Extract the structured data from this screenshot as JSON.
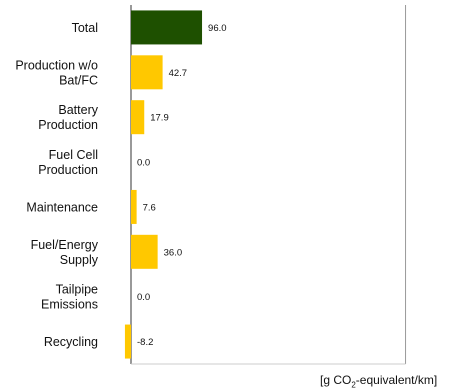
{
  "chart_data": {
    "type": "bar",
    "orientation": "horizontal",
    "categories": [
      "Total",
      "Production w/o Bat/FC",
      "Battery Production",
      "Fuel Cell Production",
      "Maintenance",
      "Fuel/Energy Supply",
      "Tailpipe Emissions",
      "Recycling"
    ],
    "category_lines": [
      [
        "Total"
      ],
      [
        "Production  w/o",
        "Bat/FC"
      ],
      [
        "Battery",
        "Production"
      ],
      [
        "Fuel Cell",
        "Production"
      ],
      [
        "Maintenance"
      ],
      [
        "Fuel/Energy",
        "Supply"
      ],
      [
        "Tailpipe",
        "Emissions"
      ],
      [
        "Recycling"
      ]
    ],
    "values": [
      96.0,
      42.7,
      17.9,
      0.0,
      7.6,
      36.0,
      0.0,
      -8.2
    ],
    "value_labels": [
      "96.0",
      "42.7",
      "17.9",
      "0.0",
      "7.6",
      "36.0",
      "0.0",
      "-8.2"
    ],
    "bar_colors": [
      "#1e5000",
      "#ffc800",
      "#ffc800",
      "#ffc800",
      "#ffc800",
      "#ffc800",
      "#ffc800",
      "#ffc800"
    ],
    "xlabel": {
      "prefix": "[g CO",
      "subscript": "2",
      "suffix": "-equivalent/km]"
    },
    "xlim": [
      -8.2,
      371
    ],
    "gridlines_x": [
      0,
      371
    ],
    "grid": false,
    "legend": "none"
  }
}
